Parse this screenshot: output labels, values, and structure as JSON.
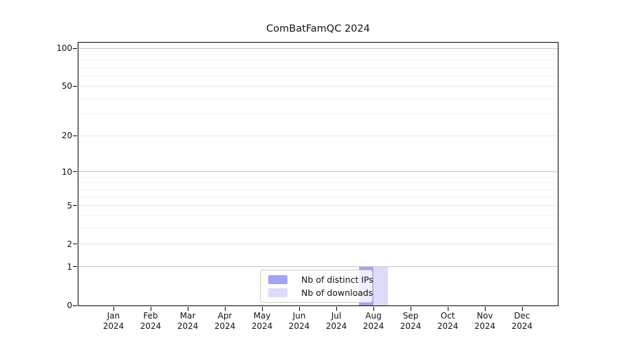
{
  "title": "ComBatFamQC 2024",
  "chart_data": {
    "type": "bar",
    "title": "ComBatFamQC 2024",
    "categories": [
      "Jan 2024",
      "Feb 2024",
      "Mar 2024",
      "Apr 2024",
      "May 2024",
      "Jun 2024",
      "Jul 2024",
      "Aug 2024",
      "Sep 2024",
      "Oct 2024",
      "Nov 2024",
      "Dec 2024"
    ],
    "series": [
      {
        "name": "Nb of distinct IPs",
        "color": "#a3a3f0",
        "values": [
          0,
          0,
          0,
          0,
          0,
          0,
          0,
          1,
          0,
          0,
          0,
          0
        ]
      },
      {
        "name": "Nb of downloads",
        "color": "#dcdcf8",
        "values": [
          0,
          0,
          0,
          0,
          0,
          0,
          0,
          1,
          0,
          0,
          0,
          0
        ]
      }
    ],
    "yscale": "log1p",
    "ylim": [
      0,
      112
    ],
    "y_major_ticks": [
      0,
      1,
      2,
      5,
      10,
      20,
      50,
      100
    ],
    "y_minor_gridlines": [
      3,
      4,
      6,
      7,
      8,
      9,
      30,
      40,
      60,
      70,
      80,
      90
    ],
    "grid": true,
    "legend_position": "bottom-center-inside",
    "xlabel": "",
    "ylabel": ""
  },
  "legend": {
    "items": [
      {
        "label": "Nb of distinct IPs",
        "color": "#a3a3f0"
      },
      {
        "label": "Nb of downloads",
        "color": "#dcdcf8"
      }
    ]
  },
  "colors": {
    "decade_gridline": "#c4c4c4",
    "labeled_gridline": "#e4e4e4",
    "minor_gridline": "#f2f2f2",
    "spine": "#000000",
    "background": "#ffffff"
  }
}
